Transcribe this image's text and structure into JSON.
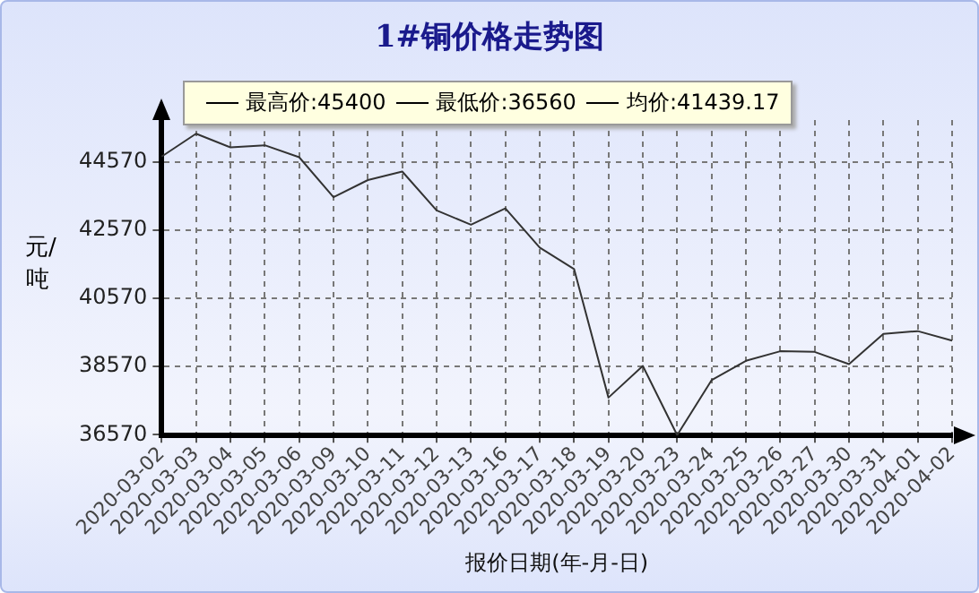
{
  "chart_data": {
    "type": "line",
    "title": "1#铜价格走势图",
    "xlabel": "报价日期(年-月-日)",
    "ylabel": "元/吨",
    "annotations": [
      "最高价:45400",
      "最低价:36560",
      "均价:41439.17"
    ],
    "categories": [
      "2020-03-02",
      "2020-03-03",
      "2020-03-04",
      "2020-03-05",
      "2020-03-06",
      "2020-03-09",
      "2020-03-10",
      "2020-03-11",
      "2020-03-12",
      "2020-03-13",
      "2020-03-16",
      "2020-03-17",
      "2020-03-18",
      "2020-03-19",
      "2020-03-20",
      "2020-03-23",
      "2020-03-24",
      "2020-03-25",
      "2020-03-26",
      "2020-03-27",
      "2020-03-30",
      "2020-03-31",
      "2020-04-01",
      "2020-04-02"
    ],
    "series": [
      {
        "color": "#333333",
        "values": [
          44730,
          45400,
          45000,
          45060,
          44710,
          43540,
          44040,
          44290,
          43150,
          42730,
          43210,
          42060,
          41430,
          37660,
          38590,
          36560,
          38170,
          38740,
          39020,
          39000,
          38640,
          39530,
          39610,
          39330
        ]
      }
    ],
    "ylim": [
      36550,
      45800
    ],
    "yticks": [
      36570,
      38570,
      40570,
      42570,
      44570
    ],
    "grid": true,
    "marker": "none",
    "line_style": "solid"
  }
}
